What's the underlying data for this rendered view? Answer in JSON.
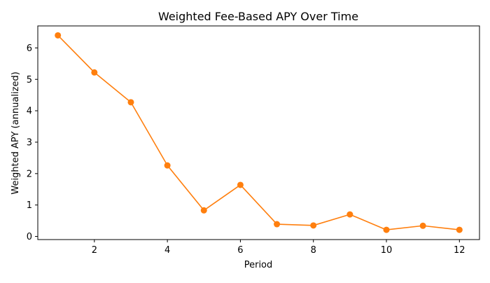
{
  "chart_data": {
    "type": "line",
    "title": "Weighted Fee-Based APY Over Time",
    "xlabel": "Period",
    "ylabel": "Weighted APY (annualized)",
    "x": [
      1,
      2,
      3,
      4,
      5,
      6,
      7,
      8,
      9,
      10,
      11,
      12
    ],
    "series": [
      {
        "values": [
          6.4,
          5.22,
          4.27,
          2.26,
          0.83,
          1.64,
          0.39,
          0.35,
          0.7,
          0.21,
          0.34,
          0.21
        ]
      }
    ],
    "xlim": [
      0.45,
      12.55
    ],
    "ylim": [
      -0.1,
      6.7
    ],
    "xticks": [
      2,
      4,
      6,
      8,
      10,
      12
    ],
    "yticks": [
      0,
      1,
      2,
      3,
      4,
      5,
      6
    ],
    "grid": false,
    "colors": {
      "line": "#ff7f0e",
      "axes": "#000000",
      "background": "#ffffff"
    }
  }
}
